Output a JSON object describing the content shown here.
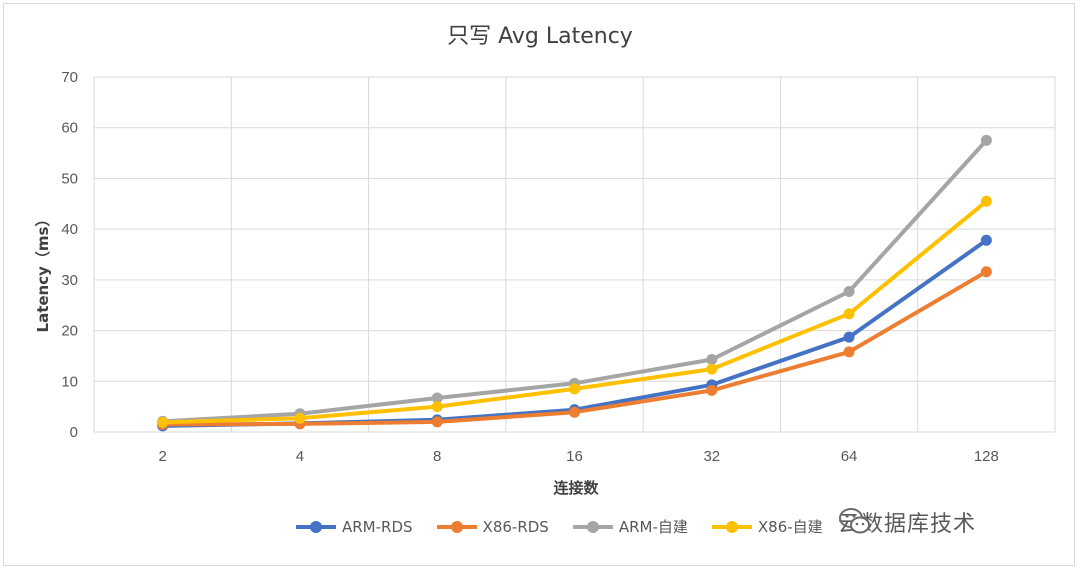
{
  "chart_data": {
    "type": "line",
    "title": "只写 Avg Latency",
    "xlabel": "连接数",
    "ylabel": "Latency（ms）",
    "categories": [
      "2",
      "4",
      "8",
      "16",
      "32",
      "64",
      "128"
    ],
    "ylim": [
      0,
      70
    ],
    "yticks": [
      "0",
      "10",
      "20",
      "30",
      "40",
      "50",
      "60",
      "70"
    ],
    "grid": true,
    "legend_position": "bottom",
    "series": [
      {
        "name": "ARM-RDS",
        "color": "#4472C4",
        "values": [
          1.2,
          1.7,
          2.4,
          4.4,
          9.3,
          18.7,
          37.8
        ]
      },
      {
        "name": "X86-RDS",
        "color": "#ED7D31",
        "values": [
          1.5,
          1.6,
          2.0,
          3.9,
          8.2,
          15.8,
          31.6
        ]
      },
      {
        "name": "ARM-自建",
        "color": "#A5A5A5",
        "values": [
          2.1,
          3.6,
          6.7,
          9.6,
          14.3,
          27.7,
          57.5
        ]
      },
      {
        "name": "X86-自建",
        "color": "#FFC000",
        "values": [
          1.9,
          2.7,
          5.0,
          8.5,
          12.4,
          23.3,
          45.5
        ]
      }
    ]
  },
  "watermark": {
    "text": "云数据库技术",
    "icon": "wechat-icon"
  }
}
